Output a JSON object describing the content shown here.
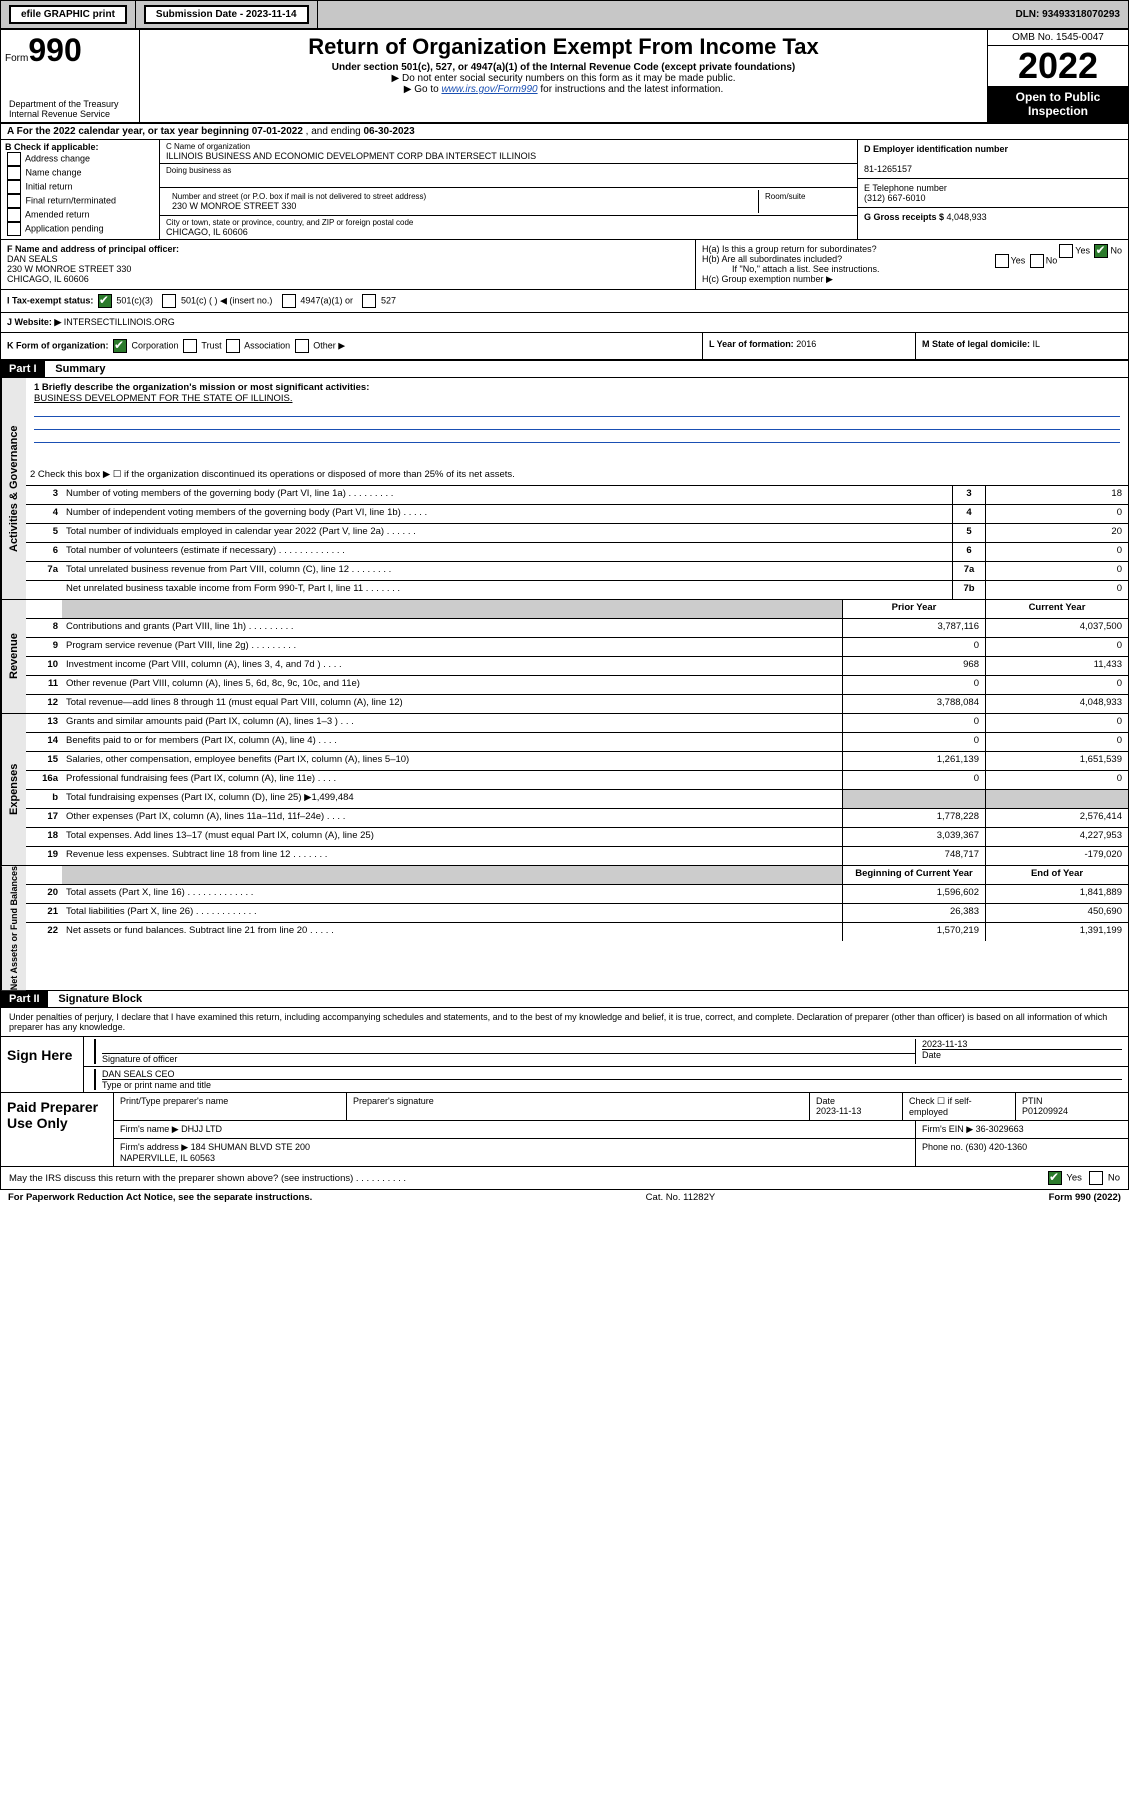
{
  "topbar": {
    "efile": "efile GRAPHIC print",
    "submission_label": "Submission Date - 2023-11-14",
    "dln": "DLN: 93493318070293"
  },
  "header": {
    "form_prefix": "Form",
    "form_big": "990",
    "dept": "Department of the Treasury\nInternal Revenue Service",
    "title": "Return of Organization Exempt From Income Tax",
    "sub1": "Under section 501(c), 527, or 4947(a)(1) of the Internal Revenue Code (except private foundations)",
    "sub2": "▶ Do not enter social security numbers on this form as it may be made public.",
    "sub3_pre": "▶ Go to ",
    "sub3_link": "www.irs.gov/Form990",
    "sub3_post": " for instructions and the latest information.",
    "omb": "OMB No. 1545-0047",
    "year": "2022",
    "inspect": "Open to Public Inspection"
  },
  "row_a": {
    "label": "A For the 2022 calendar year, or tax year beginning ",
    "begin": "07-01-2022",
    "mid": " , and ending ",
    "end": "06-30-2023"
  },
  "section_b": {
    "label": "B Check if applicable:",
    "opts": [
      "Address change",
      "Name change",
      "Initial return",
      "Final return/terminated",
      "Amended return",
      "Application pending"
    ]
  },
  "section_c": {
    "name_label": "C Name of organization",
    "name": "ILLINOIS BUSINESS AND ECONOMIC DEVELOPMENT CORP DBA INTERSECT ILLINOIS",
    "dba_label": "Doing business as",
    "addr_label": "Number and street (or P.O. box if mail is not delivered to street address)",
    "room_label": "Room/suite",
    "addr": "230 W MONROE STREET 330",
    "city_label": "City or town, state or province, country, and ZIP or foreign postal code",
    "city": "CHICAGO, IL  60606"
  },
  "section_d": {
    "ein_label": "D Employer identification number",
    "ein": "81-1265157",
    "tel_label": "E Telephone number",
    "tel": "(312) 667-6010",
    "gross_label": "G Gross receipts $ ",
    "gross": "4,048,933"
  },
  "section_f": {
    "label": "F Name and address of principal officer:",
    "name": "DAN SEALS",
    "addr": "230 W MONROE STREET 330\nCHICAGO, IL  60606"
  },
  "section_h": {
    "ha": "H(a)  Is this a group return for subordinates?",
    "hb": "H(b)  Are all subordinates included?",
    "hb_note": "If \"No,\" attach a list. See instructions.",
    "hc": "H(c)  Group exemption number ▶",
    "yes": "Yes",
    "no": "No"
  },
  "section_i": {
    "label": "I    Tax-exempt status:",
    "opts": [
      "501(c)(3)",
      "501(c) (  ) ◀ (insert no.)",
      "4947(a)(1) or",
      "527"
    ]
  },
  "section_j": {
    "label": "J    Website: ▶  ",
    "value": "INTERSECTILLINOIS.ORG"
  },
  "section_k": {
    "label": "K Form of organization:",
    "opts": [
      "Corporation",
      "Trust",
      "Association",
      "Other ▶"
    ]
  },
  "section_l": {
    "label": "L Year of formation: ",
    "value": "2016"
  },
  "section_m": {
    "label": "M State of legal domicile: ",
    "value": "IL"
  },
  "part1": {
    "hdr": "Part I",
    "title": "Summary",
    "line1_label": "1   Briefly describe the organization's mission or most significant activities:",
    "mission": "BUSINESS DEVELOPMENT FOR THE STATE OF ILLINOIS.",
    "line2": "2   Check this box ▶ ☐  if the organization discontinued its operations or disposed of more than 25% of its net assets.",
    "governance_label": "Activities & Governance",
    "revenue_label": "Revenue",
    "expenses_label": "Expenses",
    "net_label": "Net Assets or Fund Balances",
    "gov_lines": [
      {
        "n": "3",
        "d": "Number of voting members of the governing body (Part VI, line 1a)  .    .    .    .    .    .    .    .    .",
        "b": "3",
        "v": "18"
      },
      {
        "n": "4",
        "d": "Number of independent voting members of the governing body (Part VI, line 1b)   .    .    .    .    .",
        "b": "4",
        "v": "0"
      },
      {
        "n": "5",
        "d": "Total number of individuals employed in calendar year 2022 (Part V, line 2a)    .    .    .    .    .    .",
        "b": "5",
        "v": "20"
      },
      {
        "n": "6",
        "d": "Total number of volunteers (estimate if necessary)   .    .    .    .    .    .    .    .    .    .    .    .    .",
        "b": "6",
        "v": "0"
      },
      {
        "n": "7a",
        "d": "Total unrelated business revenue from Part VIII, column (C), line 12    .    .    .    .    .    .    .    .",
        "b": "7a",
        "v": "0"
      },
      {
        "n": "",
        "d": "Net unrelated business taxable income from Form 990-T, Part I, line 11    .    .    .    .    .    .    .",
        "b": "7b",
        "v": "0"
      }
    ],
    "two_col_hdr": {
      "prior": "Prior Year",
      "current": "Current Year"
    },
    "rev_lines": [
      {
        "n": "8",
        "d": "Contributions and grants (Part VIII, line 1h)    .    .    .    .    .    .    .    .    .",
        "p": "3,787,116",
        "c": "4,037,500"
      },
      {
        "n": "9",
        "d": "Program service revenue (Part VIII, line 2g)    .    .    .    .    .    .    .    .    .",
        "p": "0",
        "c": "0"
      },
      {
        "n": "10",
        "d": "Investment income (Part VIII, column (A), lines 3, 4, and 7d )    .    .    .    .",
        "p": "968",
        "c": "11,433"
      },
      {
        "n": "11",
        "d": "Other revenue (Part VIII, column (A), lines 5, 6d, 8c, 9c, 10c, and 11e)",
        "p": "0",
        "c": "0"
      },
      {
        "n": "12",
        "d": "Total revenue—add lines 8 through 11 (must equal Part VIII, column (A), line 12)",
        "p": "3,788,084",
        "c": "4,048,933"
      }
    ],
    "exp_lines": [
      {
        "n": "13",
        "d": "Grants and similar amounts paid (Part IX, column (A), lines 1–3 )   .    .    .",
        "p": "0",
        "c": "0"
      },
      {
        "n": "14",
        "d": "Benefits paid to or for members (Part IX, column (A), line 4)    .    .    .    .",
        "p": "0",
        "c": "0"
      },
      {
        "n": "15",
        "d": "Salaries, other compensation, employee benefits (Part IX, column (A), lines 5–10)",
        "p": "1,261,139",
        "c": "1,651,539"
      },
      {
        "n": "16a",
        "d": "Professional fundraising fees (Part IX, column (A), line 11e)    .    .    .    .",
        "p": "0",
        "c": "0"
      },
      {
        "n": "b",
        "d": "Total fundraising expenses (Part IX, column (D), line 25) ▶1,499,484",
        "p": "",
        "c": "",
        "gray": true
      },
      {
        "n": "17",
        "d": "Other expenses (Part IX, column (A), lines 11a–11d, 11f–24e)   .    .    .    .",
        "p": "1,778,228",
        "c": "2,576,414"
      },
      {
        "n": "18",
        "d": "Total expenses. Add lines 13–17 (must equal Part IX, column (A), line 25)",
        "p": "3,039,367",
        "c": "4,227,953"
      },
      {
        "n": "19",
        "d": "Revenue less expenses. Subtract line 18 from line 12    .    .    .    .    .    .    .",
        "p": "748,717",
        "c": "-179,020"
      }
    ],
    "net_hdr": {
      "begin": "Beginning of Current Year",
      "end": "End of Year"
    },
    "net_lines": [
      {
        "n": "20",
        "d": "Total assets (Part X, line 16)    .    .    .    .    .    .    .    .    .    .    .    .    .",
        "p": "1,596,602",
        "c": "1,841,889"
      },
      {
        "n": "21",
        "d": "Total liabilities (Part X, line 26)   .    .    .    .    .    .    .    .    .    .    .    .",
        "p": "26,383",
        "c": "450,690"
      },
      {
        "n": "22",
        "d": "Net assets or fund balances. Subtract line 21 from line 20    .    .    .    .    .",
        "p": "1,570,219",
        "c": "1,391,199"
      }
    ]
  },
  "part2": {
    "hdr": "Part II",
    "title": "Signature Block",
    "decl": "Under penalties of perjury, I declare that I have examined this return, including accompanying schedules and statements, and to the best of my knowledge and belief, it is true, correct, and complete. Declaration of preparer (other than officer) is based on all information of which preparer has any knowledge.",
    "sign_here": "Sign Here",
    "sig_of_officer": "Signature of officer",
    "sig_date": "2023-11-13",
    "date_label": "Date",
    "officer_name": "DAN SEALS  CEO",
    "type_name": "Type or print name and title",
    "paid_label": "Paid Preparer Use Only",
    "prep_hdr": [
      "Print/Type preparer's name",
      "Preparer's signature",
      "Date",
      "",
      "PTIN"
    ],
    "prep_row1": [
      "",
      "",
      "2023-11-13",
      "Check ☐ if self-employed",
      "P01209924"
    ],
    "firm_name_label": "Firm's name    ▶ ",
    "firm_name": "DHJJ LTD",
    "firm_ein_label": "Firm's EIN ▶ ",
    "firm_ein": "36-3029663",
    "firm_addr_label": "Firm's address ▶ ",
    "firm_addr": "184 SHUMAN BLVD STE 200\nNAPERVILLE, IL  60563",
    "phone_label": "Phone no. ",
    "phone": "(630) 420-1360",
    "discuss": "May the IRS discuss this return with the preparer shown above? (see instructions)    .    .    .    .    .    .    .    .    .    .",
    "yes": "Yes",
    "no": "No"
  },
  "footer": {
    "paperwork": "For Paperwork Reduction Act Notice, see the separate instructions.",
    "cat": "Cat. No. 11282Y",
    "form": "Form 990 (2022)"
  }
}
